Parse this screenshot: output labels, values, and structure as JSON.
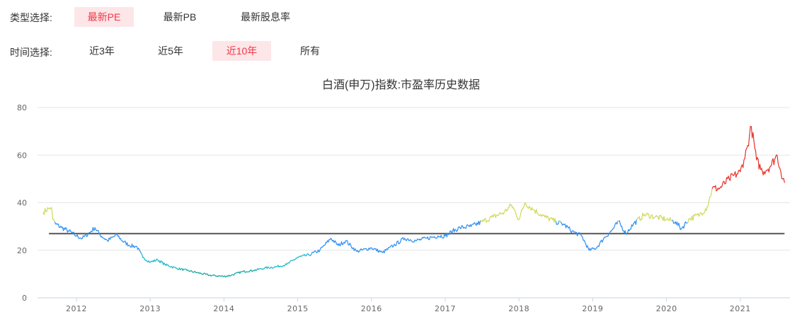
{
  "filters": {
    "type": {
      "label": "类型选择:",
      "options": [
        {
          "label": "最新PE",
          "active": true
        },
        {
          "label": "最新PB",
          "active": false
        },
        {
          "label": "最新股息率",
          "active": false
        }
      ]
    },
    "time": {
      "label": "时间选择:",
      "options": [
        {
          "label": "近3年",
          "active": false
        },
        {
          "label": "近5年",
          "active": false
        },
        {
          "label": "近10年",
          "active": true
        },
        {
          "label": "所有",
          "active": false
        }
      ]
    }
  },
  "colors": {
    "active_bg": "#fde6e8",
    "active_text": "#f23645",
    "grid": "#e6e6e6",
    "axis": "#c9d3e6",
    "median_line": "#555555",
    "series_low": "#13a89e",
    "series_mid_low": "#1ab8cc",
    "series_mid": "#2f8ff2",
    "series_high": "#cfd95a",
    "series_very_high": "#e8312a"
  },
  "chart_data": {
    "type": "line",
    "title": "白酒(申万)指数:市盈率历史数据",
    "xlabel": "",
    "ylabel": "",
    "ylim": [
      0,
      80
    ],
    "yticks": [
      0,
      20,
      40,
      60,
      80
    ],
    "xticks": [
      "2012",
      "2013",
      "2014",
      "2015",
      "2016",
      "2017",
      "2018",
      "2019",
      "2020",
      "2021"
    ],
    "grid": true,
    "legend": "none",
    "reference_line": {
      "name": "median",
      "value": 27
    },
    "series": [
      {
        "name": "PE",
        "x": [
          2011.55,
          2011.62,
          2011.66,
          2011.68,
          2011.72,
          2011.8,
          2011.9,
          2012.0,
          2012.08,
          2012.2,
          2012.25,
          2012.32,
          2012.42,
          2012.55,
          2012.62,
          2012.72,
          2012.82,
          2012.9,
          2013.0,
          2013.1,
          2013.2,
          2013.35,
          2013.5,
          2013.65,
          2013.8,
          2014.0,
          2014.1,
          2014.25,
          2014.4,
          2014.55,
          2014.7,
          2014.85,
          2015.0,
          2015.15,
          2015.3,
          2015.45,
          2015.55,
          2015.65,
          2015.8,
          2016.0,
          2016.15,
          2016.3,
          2016.45,
          2016.6,
          2016.75,
          2016.9,
          2017.0,
          2017.1,
          2017.2,
          2017.35,
          2017.5,
          2017.65,
          2017.8,
          2017.9,
          2018.0,
          2018.08,
          2018.2,
          2018.35,
          2018.5,
          2018.6,
          2018.72,
          2018.85,
          2018.95,
          2019.05,
          2019.15,
          2019.25,
          2019.35,
          2019.45,
          2019.55,
          2019.7,
          2019.85,
          2020.0,
          2020.12,
          2020.2,
          2020.3,
          2020.45,
          2020.55,
          2020.62,
          2020.72,
          2020.85,
          2021.0,
          2021.05,
          2021.1,
          2021.15,
          2021.22,
          2021.3,
          2021.4,
          2021.5,
          2021.55,
          2021.6
        ],
        "values": [
          36,
          37.5,
          38,
          33,
          31,
          29.5,
          28,
          26,
          25,
          28,
          29.5,
          26.5,
          24,
          26.5,
          24,
          22,
          21.5,
          17,
          15,
          16,
          14,
          12.5,
          11.5,
          10.5,
          9.5,
          9,
          9.5,
          11,
          11.5,
          12.5,
          13,
          14,
          17,
          18,
          20,
          25,
          22,
          24,
          19.5,
          21,
          19,
          22,
          25,
          24,
          25,
          26,
          26,
          28,
          29.5,
          30,
          32,
          34,
          36,
          39,
          33,
          40,
          37,
          34,
          32,
          31,
          28,
          26,
          20,
          21,
          25,
          28,
          32,
          27,
          31,
          35,
          34,
          33,
          32,
          29,
          33,
          35,
          38,
          46,
          46,
          50,
          53,
          58,
          64,
          72,
          58,
          53,
          55,
          60,
          53,
          48.5
        ]
      }
    ]
  }
}
